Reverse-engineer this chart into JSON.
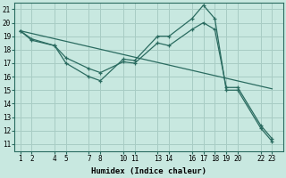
{
  "xlabel": "Humidex (Indice chaleur)",
  "bg_color": "#c8e8e0",
  "grid_color": "#a8ccc4",
  "line_color": "#2a6b60",
  "xticks": [
    1,
    2,
    4,
    5,
    7,
    8,
    10,
    11,
    13,
    14,
    16,
    17,
    18,
    19,
    20,
    22,
    23
  ],
  "yticks": [
    11,
    12,
    13,
    14,
    15,
    16,
    17,
    18,
    19,
    20,
    21
  ],
  "xlim": [
    0.5,
    24.0
  ],
  "ylim": [
    10.5,
    21.5
  ],
  "line1_x": [
    1,
    2,
    4,
    5,
    7,
    8,
    10,
    11,
    13,
    14,
    16,
    17,
    18,
    19,
    20,
    22,
    23
  ],
  "line1_y": [
    19.4,
    18.8,
    18.3,
    17.0,
    16.0,
    15.7,
    17.3,
    17.2,
    19.0,
    19.0,
    20.3,
    21.3,
    20.3,
    15.0,
    15.0,
    12.2,
    11.2
  ],
  "line2_x": [
    1,
    2,
    4,
    5,
    7,
    8,
    10,
    11,
    13,
    14,
    16,
    17,
    18,
    19,
    20,
    22,
    23
  ],
  "line2_y": [
    19.4,
    18.7,
    18.3,
    17.4,
    16.6,
    16.3,
    17.1,
    17.0,
    18.5,
    18.3,
    19.5,
    20.0,
    19.5,
    15.2,
    15.2,
    12.4,
    11.4
  ],
  "line3_x": [
    1,
    23
  ],
  "line3_y": [
    19.4,
    15.1
  ]
}
